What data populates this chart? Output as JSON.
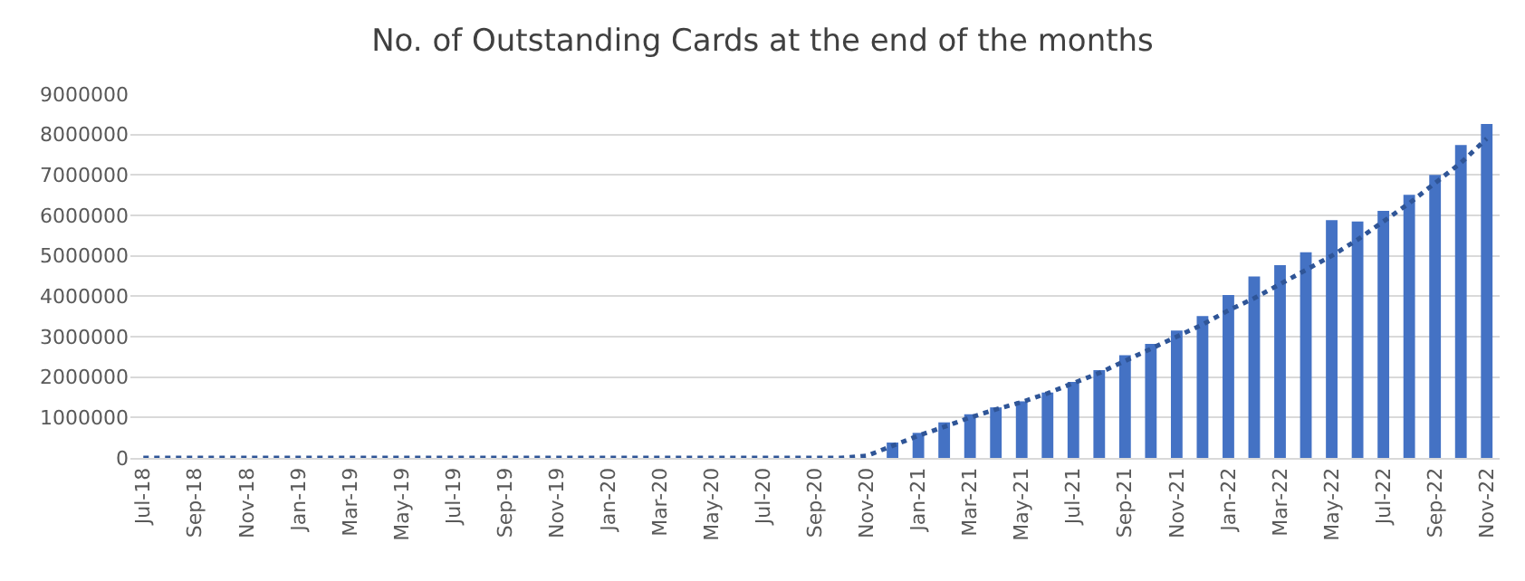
{
  "chart_data": {
    "type": "bar",
    "title": "No. of Outstanding Cards at the end of the months",
    "categories": [
      "Jul-18",
      null,
      "Sep-18",
      null,
      "Nov-18",
      null,
      "Jan-19",
      null,
      "Mar-19",
      null,
      "May-19",
      null,
      "Jul-19",
      null,
      "Sep-19",
      null,
      "Nov-19",
      null,
      "Jan-20",
      null,
      "Mar-20",
      null,
      "May-20",
      null,
      "Jul-20",
      null,
      "Sep-20",
      null,
      "Nov-20",
      null,
      "Jan-21",
      null,
      "Mar-21",
      null,
      "May-21",
      null,
      "Jul-21",
      null,
      "Sep-21",
      null,
      "Nov-21",
      null,
      "Jan-22",
      null,
      "Mar-22",
      null,
      "May-22",
      null,
      "Jul-22",
      null,
      "Sep-22",
      null,
      "Nov-22"
    ],
    "series": [
      {
        "color": "#4472c4",
        "values": [
          0,
          0,
          0,
          0,
          0,
          0,
          0,
          0,
          0,
          0,
          0,
          0,
          0,
          0,
          0,
          0,
          0,
          0,
          0,
          0,
          0,
          0,
          0,
          0,
          0,
          0,
          0,
          0,
          0,
          380000,
          620000,
          880000,
          1080000,
          1250000,
          1400000,
          1620000,
          1880000,
          2170000,
          2540000,
          2820000,
          3150000,
          3510000,
          4030000,
          4490000,
          4770000,
          5090000,
          5880000,
          5850000,
          6110000,
          6510000,
          7000000,
          7740000,
          8260000
        ]
      },
      {
        "type": "line",
        "color": "#2f5597",
        "line_style": "dotted",
        "values": [
          0,
          0,
          0,
          0,
          0,
          0,
          0,
          0,
          0,
          0,
          0,
          0,
          0,
          0,
          0,
          0,
          0,
          0,
          0,
          0,
          0,
          0,
          0,
          0,
          0,
          0,
          0,
          0,
          50000,
          300000,
          550000,
          770000,
          1000000,
          1200000,
          1380000,
          1600000,
          1850000,
          2100000,
          2400000,
          2700000,
          3000000,
          3300000,
          3650000,
          3950000,
          4300000,
          4650000,
          5000000,
          5400000,
          5850000,
          6300000,
          6800000,
          7300000,
          7900000
        ]
      }
    ],
    "ylim": [
      0,
      9000000
    ],
    "yticks": [
      0,
      1000000,
      2000000,
      3000000,
      4000000,
      5000000,
      6000000,
      7000000,
      8000000,
      9000000
    ],
    "grid": "y"
  }
}
